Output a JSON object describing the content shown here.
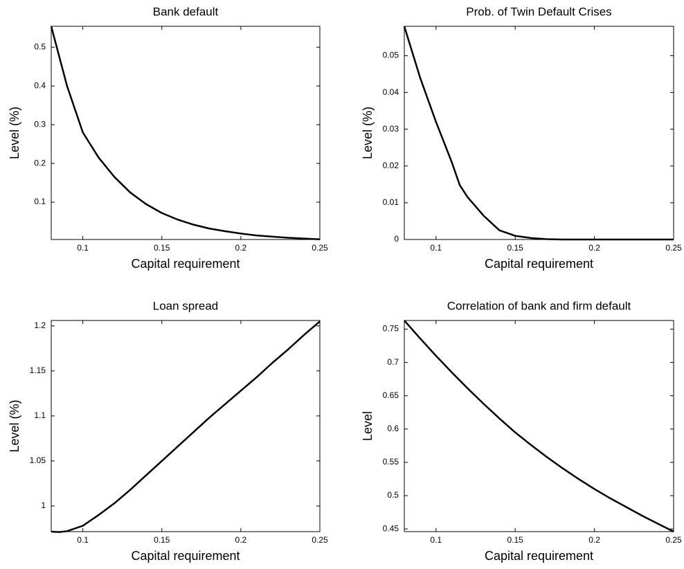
{
  "chart_data": [
    {
      "type": "line",
      "title": "Bank default",
      "xlabel": "Capital requirement",
      "ylabel": "Level (%)",
      "x": [
        0.08,
        0.09,
        0.1,
        0.11,
        0.12,
        0.13,
        0.14,
        0.15,
        0.16,
        0.17,
        0.18,
        0.19,
        0.2,
        0.21,
        0.22,
        0.23,
        0.24,
        0.25
      ],
      "series": [
        {
          "color": "#000000",
          "values": [
            0.554,
            0.4,
            0.28,
            0.215,
            0.165,
            0.125,
            0.095,
            0.072,
            0.055,
            0.042,
            0.032,
            0.025,
            0.019,
            0.014,
            0.011,
            0.008,
            0.006,
            0.004
          ]
        }
      ],
      "xlim": [
        0.08,
        0.25
      ],
      "xticks": [
        0.1,
        0.15,
        0.2,
        0.25
      ],
      "ylim": [
        0.0036,
        0.554
      ],
      "yticks": [
        0.1,
        0.2,
        0.3,
        0.4,
        0.5
      ]
    },
    {
      "type": "line",
      "title": "Prob. of Twin Default Crises",
      "xlabel": "Capital requirement",
      "ylabel": "Level (%)",
      "x": [
        0.08,
        0.09,
        0.1,
        0.11,
        0.115,
        0.12,
        0.13,
        0.14,
        0.15,
        0.16,
        0.17,
        0.18,
        0.19,
        0.2,
        0.21,
        0.22,
        0.23,
        0.24,
        0.25
      ],
      "series": [
        {
          "color": "#000000",
          "values": [
            0.058,
            0.044,
            0.032,
            0.021,
            0.0148,
            0.0115,
            0.0065,
            0.0025,
            0.001,
            0.0004,
            0.0001,
            0,
            0,
            0,
            0,
            0,
            0,
            0,
            0
          ]
        }
      ],
      "xlim": [
        0.08,
        0.25
      ],
      "xticks": [
        0.1,
        0.15,
        0.2,
        0.25
      ],
      "ylim": [
        0,
        0.058
      ],
      "yticks": [
        0,
        0.01,
        0.02,
        0.03,
        0.04,
        0.05
      ]
    },
    {
      "type": "line",
      "title": "Loan spread",
      "xlabel": "Capital requirement",
      "ylabel": "Level (%)",
      "x": [
        0.08,
        0.085,
        0.09,
        0.1,
        0.11,
        0.12,
        0.13,
        0.14,
        0.15,
        0.16,
        0.17,
        0.18,
        0.19,
        0.2,
        0.21,
        0.22,
        0.23,
        0.24,
        0.25
      ],
      "series": [
        {
          "color": "#000000",
          "values": [
            0.9715,
            0.971,
            0.972,
            0.978,
            0.99,
            1.003,
            1.018,
            1.034,
            1.05,
            1.066,
            1.082,
            1.098,
            1.113,
            1.128,
            1.143,
            1.159,
            1.174,
            1.19,
            1.205
          ]
        }
      ],
      "xlim": [
        0.08,
        0.25
      ],
      "xticks": [
        0.1,
        0.15,
        0.2,
        0.25
      ],
      "ylim": [
        0.9715,
        1.206
      ],
      "yticks": [
        1,
        1.05,
        1.1,
        1.15,
        1.2
      ]
    },
    {
      "type": "line",
      "title": "Correlation of bank and firm default",
      "xlabel": "Capital requirement",
      "ylabel": "Level",
      "x": [
        0.08,
        0.09,
        0.1,
        0.11,
        0.12,
        0.13,
        0.14,
        0.15,
        0.16,
        0.17,
        0.18,
        0.19,
        0.2,
        0.21,
        0.22,
        0.23,
        0.24,
        0.25
      ],
      "series": [
        {
          "color": "#000000",
          "values": [
            0.763,
            0.736,
            0.71,
            0.685,
            0.661,
            0.638,
            0.616,
            0.595,
            0.576,
            0.558,
            0.541,
            0.525,
            0.51,
            0.496,
            0.483,
            0.47,
            0.458,
            0.446
          ]
        }
      ],
      "xlim": [
        0.08,
        0.25
      ],
      "xticks": [
        0.1,
        0.15,
        0.2,
        0.25
      ],
      "ylim": [
        0.446,
        0.763
      ],
      "yticks": [
        0.45,
        0.5,
        0.55,
        0.6,
        0.65,
        0.7,
        0.75
      ]
    }
  ]
}
